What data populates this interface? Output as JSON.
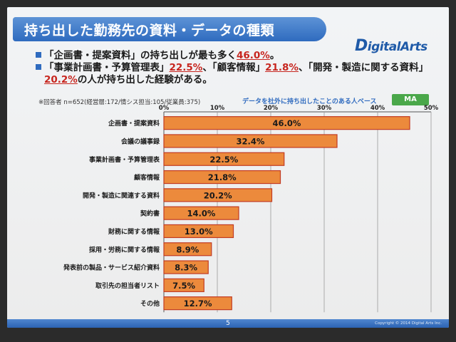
{
  "title": "持ち出した勤務先の資料・データの種類",
  "logo": {
    "d": "D",
    "rest": "igitalArts"
  },
  "bullets": [
    {
      "parts": [
        {
          "t": "「企画書・提案資料」の持ち出しが最も多く"
        },
        {
          "t": "46.0%",
          "hl": true
        },
        {
          "t": "。"
        }
      ]
    },
    {
      "parts": [
        {
          "t": "「事業計画書・予算管理表」"
        },
        {
          "t": "22.5%",
          "hl": true
        },
        {
          "t": "、「顧客情報」"
        },
        {
          "t": "21.8%",
          "hl": true
        },
        {
          "t": "、「開発・製造に関する資料」"
        }
      ]
    },
    {
      "parts": [
        {
          "t": "20.2%",
          "hl": true
        },
        {
          "t": "の人が持ち出した経験がある。"
        }
      ],
      "indent": true
    }
  ],
  "note": "※回答者 n=652(経営層:172/情シス担当:105/従業員:375)",
  "basis": "データを社外に持ち出したことのある人ベース",
  "badge": "MA",
  "page_number": "5",
  "copyright": "Copyright © 2014 Digital Arts Inc.",
  "colors": {
    "bar_fill": "#ec8a3c",
    "bar_border": "#c23b22",
    "grid": "#9a9a9a",
    "title_bar": "#2f6bbf"
  },
  "chart_data": {
    "type": "bar",
    "orientation": "horizontal",
    "categories": [
      "企画書・提案資料",
      "会議の議事録",
      "事業計画書・予算管理表",
      "顧客情報",
      "開発・製造に関連する資料",
      "契約書",
      "財務に関する情報",
      "採用・労務に関する情報",
      "発表前の製品・サービス紹介資料",
      "取引先の担当者リスト",
      "その他"
    ],
    "values": [
      46.0,
      32.4,
      22.5,
      21.8,
      20.2,
      14.0,
      13.0,
      8.9,
      8.3,
      7.5,
      12.7
    ],
    "value_labels": [
      "46.0%",
      "32.4%",
      "22.5%",
      "21.8%",
      "20.2%",
      "14.0%",
      "13.0%",
      "8.9%",
      "8.3%",
      "7.5%",
      "12.7%"
    ],
    "xlim": [
      0,
      50
    ],
    "ticks": [
      0,
      10,
      20,
      30,
      40,
      50
    ],
    "tick_labels": [
      "0%",
      "10%",
      "20%",
      "30%",
      "40%",
      "50%"
    ],
    "grid": true
  }
}
